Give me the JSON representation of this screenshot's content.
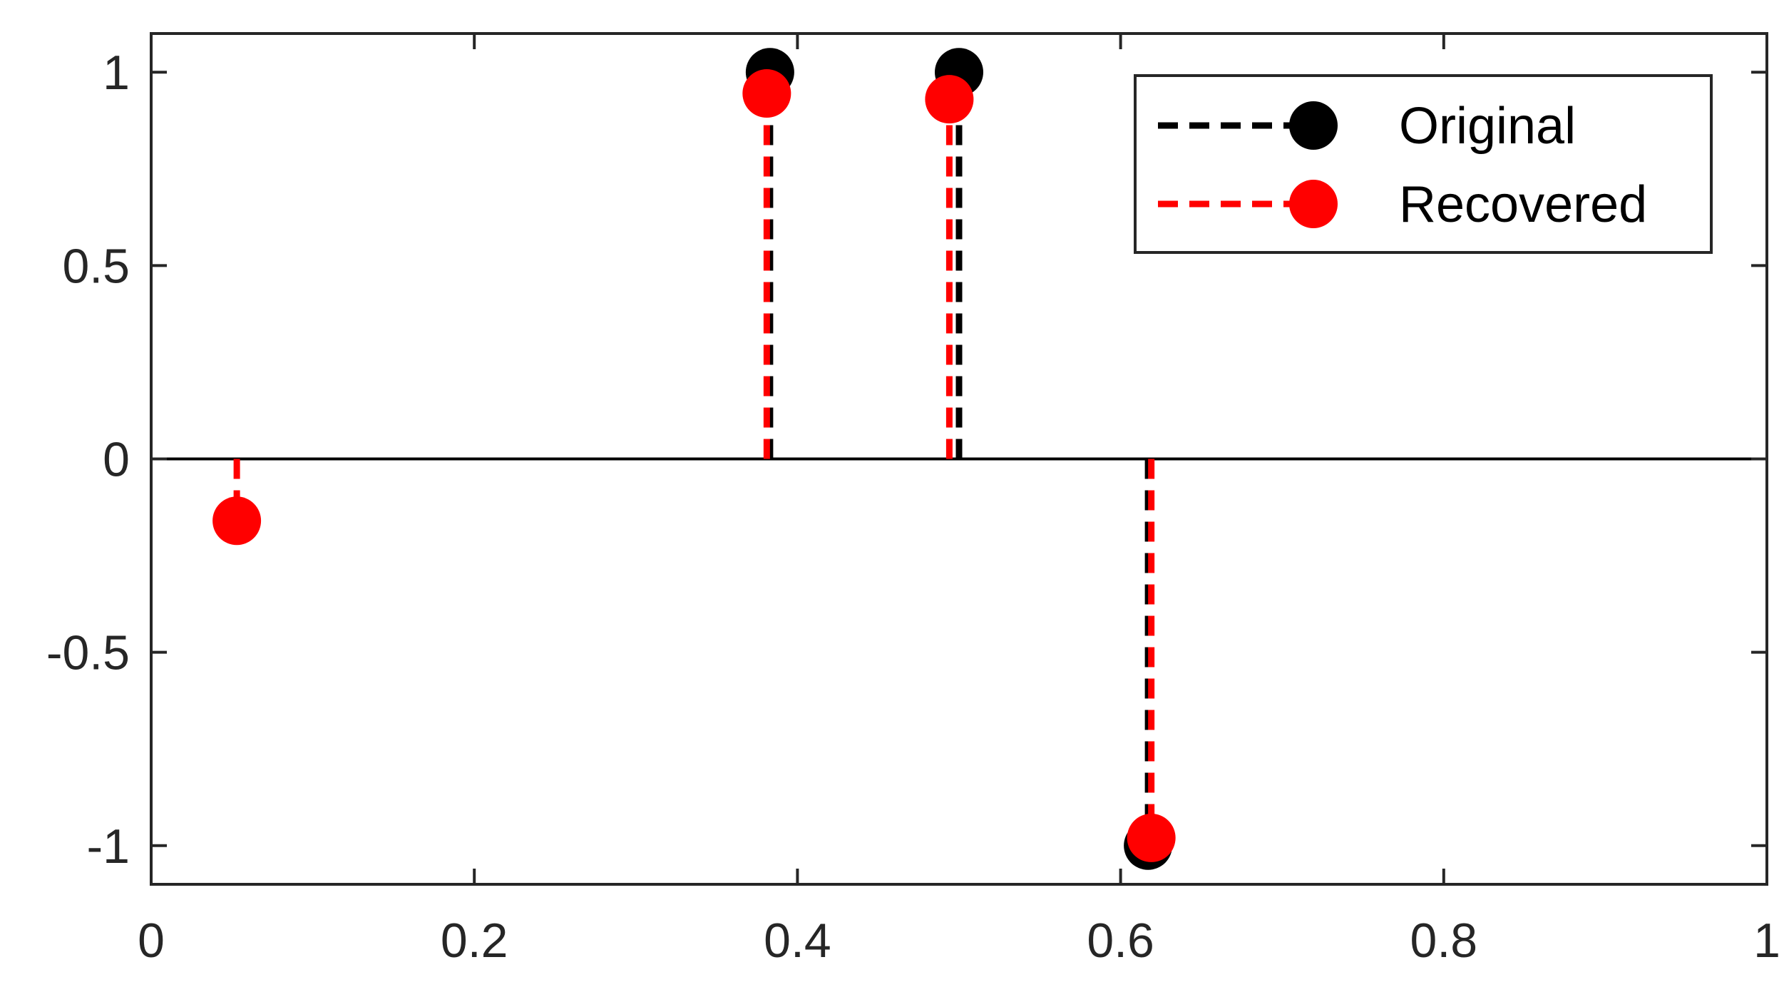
{
  "chart_data": {
    "type": "stem",
    "xlim": [
      0,
      1
    ],
    "ylim": [
      -1.1,
      1.1
    ],
    "x_ticks": [
      {
        "value": 0,
        "label": "0"
      },
      {
        "value": 0.2,
        "label": "0.2"
      },
      {
        "value": 0.4,
        "label": "0.4"
      },
      {
        "value": 0.6,
        "label": "0.6"
      },
      {
        "value": 0.8,
        "label": "0.8"
      },
      {
        "value": 1,
        "label": "1"
      }
    ],
    "y_ticks": [
      {
        "value": 1,
        "label": "1"
      },
      {
        "value": 0.5,
        "label": "0.5"
      },
      {
        "value": 0,
        "label": "0"
      },
      {
        "value": -0.5,
        "label": "-0.5"
      },
      {
        "value": -1,
        "label": "-1"
      }
    ],
    "grid": false,
    "baseline": 0,
    "legend_position": "top-right",
    "series": [
      {
        "name": "Original",
        "color": "#000000",
        "line_style": "dashed",
        "marker": "filled-circle",
        "points": [
          {
            "x": 0.383,
            "y": 1.0
          },
          {
            "x": 0.5,
            "y": 1.0
          },
          {
            "x": 0.617,
            "y": -1.0
          }
        ]
      },
      {
        "name": "Recovered",
        "color": "#ff0000",
        "line_style": "dashed",
        "marker": "filled-circle",
        "points": [
          {
            "x": 0.053,
            "y": -0.16
          },
          {
            "x": 0.381,
            "y": 0.945
          },
          {
            "x": 0.494,
            "y": 0.93
          },
          {
            "x": 0.619,
            "y": -0.98
          }
        ]
      }
    ]
  }
}
